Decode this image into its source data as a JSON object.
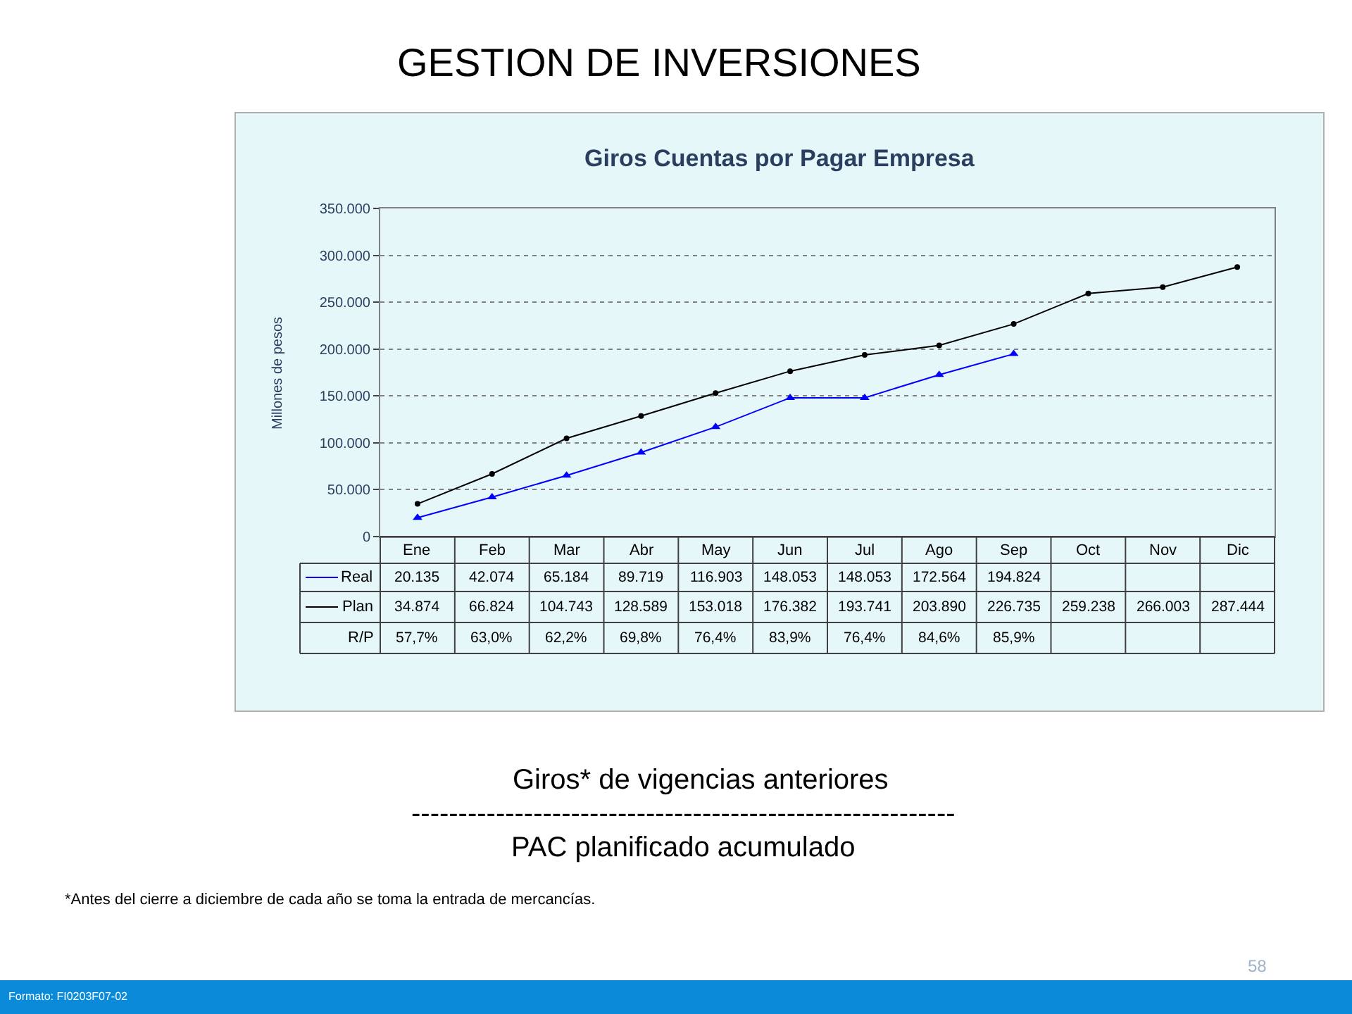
{
  "chart_data": {
    "type": "line",
    "title": "GESTION DE INVERSIONES",
    "subtitle": "Giros Cuentas por Pagar Empresa",
    "ylabel": "Millones de pesos",
    "categories": [
      "Ene",
      "Feb",
      "Mar",
      "Abr",
      "May",
      "Jun",
      "Jul",
      "Ago",
      "Sep",
      "Oct",
      "Nov",
      "Dic"
    ],
    "series": [
      {
        "name": "Real",
        "color": "#0000ff",
        "marker": "triangle",
        "values": [
          20135,
          42074,
          65184,
          89719,
          116903,
          148053,
          148053,
          172564,
          194824,
          null,
          null,
          null
        ],
        "value_labels": [
          "20.135",
          "42.074",
          "65.184",
          "89.719",
          "116.903",
          "148.053",
          "148.053",
          "172.564",
          "194.824",
          null,
          null,
          null
        ]
      },
      {
        "name": "Plan",
        "color": "#000000",
        "marker": "circle",
        "values": [
          34874,
          66824,
          104743,
          128589,
          153018,
          176382,
          193741,
          203890,
          226735,
          259238,
          266003,
          287444
        ],
        "value_labels": [
          "34.874",
          "66.824",
          "104.743",
          "128.589",
          "153.018",
          "176.382",
          "193.741",
          "203.890",
          "226.735",
          "259.238",
          "266.003",
          "287.444"
        ]
      }
    ],
    "ylim": [
      0,
      350000
    ],
    "yticks": [
      0,
      {
        "value": 50000,
        "label": "50.000"
      },
      {
        "value": 100000,
        "label": "100.000"
      },
      {
        "value": 150000,
        "label": "150.000"
      },
      {
        "value": 200000,
        "label": "200.000"
      },
      {
        "value": 250000,
        "label": "250.000"
      },
      {
        "value": 300000,
        "label": "300.000"
      },
      {
        "value": 350000,
        "label": "350.000"
      }
    ],
    "grid": "y",
    "line_style": "solid",
    "legend": "bottom",
    "annotations": [
      "Giros* de vigencias anteriores",
      "----------------------------------------------------------",
      "PAC planificado acumulado",
      "*Antes del cierre a diciembre de cada año se toma la entrada de mercancías.",
      "Formato: FI0203F07-02",
      "58",
      "R/P",
      "57,7%",
      "63,0%",
      "62,2%",
      "69,8%",
      "76,4%",
      "83,9%",
      "76,4%",
      "84,6%",
      "85,9%"
    ]
  }
}
